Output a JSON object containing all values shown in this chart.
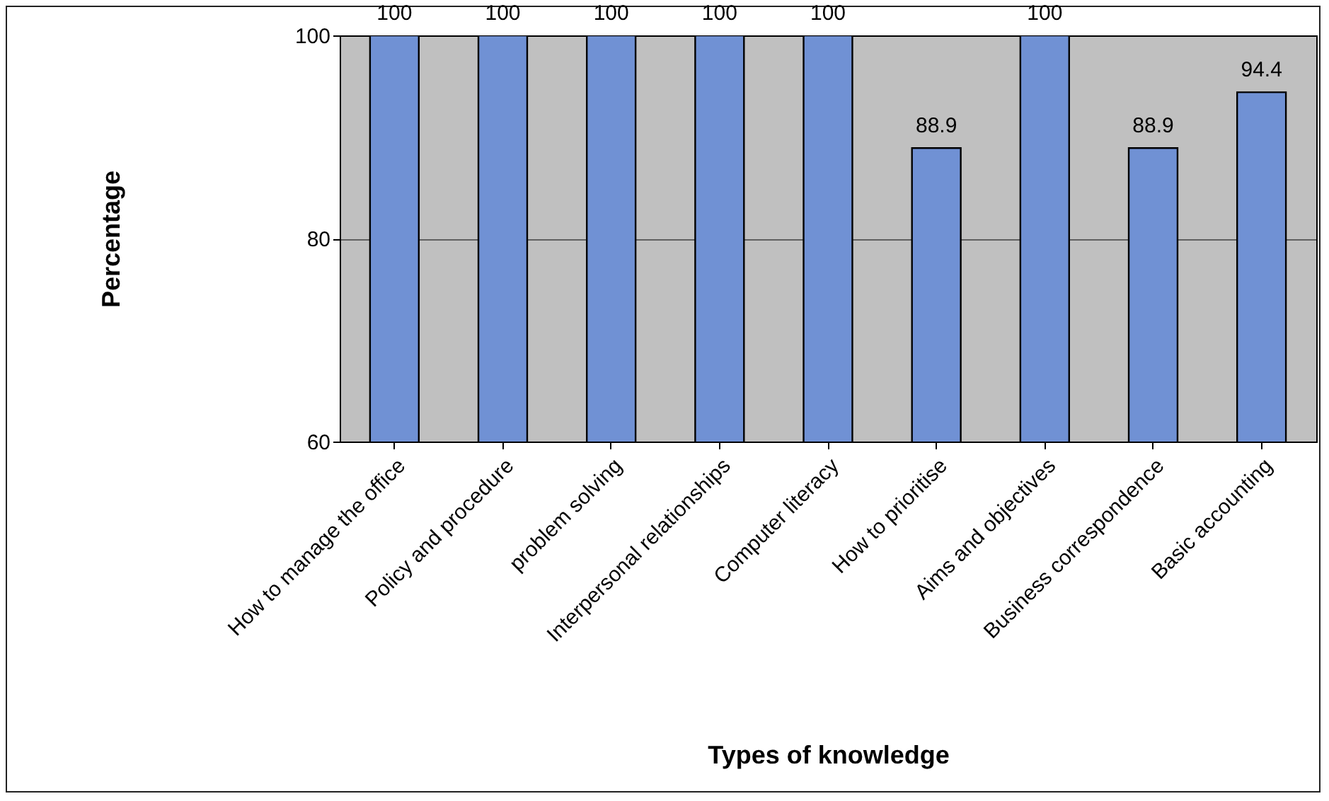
{
  "chart_data": {
    "type": "bar",
    "xlabel": "Types of knowledge",
    "ylabel": "Percentage",
    "categories": [
      "How to manage the office",
      "Policy and procedure",
      "problem solving",
      "Interpersonal relationships",
      "Computer literacy",
      "How to prioritise",
      "Aims and objectives",
      "Business correspondence",
      "Basic accounting"
    ],
    "values": [
      100,
      100,
      100,
      100,
      100,
      88.9,
      100,
      88.9,
      94.4
    ],
    "color": "#7091d4",
    "ylim": [
      60,
      100
    ],
    "yticks": [
      60,
      80,
      100
    ],
    "grid": "y",
    "data_labels": true
  }
}
